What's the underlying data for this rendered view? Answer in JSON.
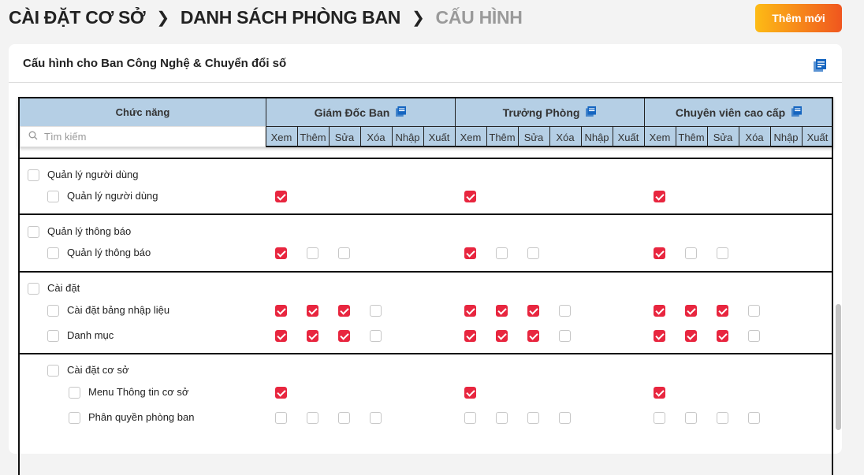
{
  "breadcrumb": [
    "CÀI ĐẶT CƠ SỞ",
    "DANH SÁCH PHÒNG BAN",
    "CẤU HÌNH"
  ],
  "add_button": "Thêm mới",
  "card_title": "Cấu hình cho Ban Công Nghệ & Chuyển đổi số",
  "colors": {
    "accent": "#e8263f",
    "header_bg": "#b5cfe5",
    "icon": "#1565c0",
    "button_from": "#fdbb15",
    "button_to": "#f0561f"
  },
  "table": {
    "function_header": "Chức năng",
    "search_placeholder": "Tìm kiếm",
    "roles": [
      "Giám Đốc Ban",
      "Trưởng Phòng",
      "Chuyên viên cao cấp"
    ],
    "actions": [
      "Xem",
      "Thêm",
      "Sửa",
      "Xóa",
      "Nhập",
      "Xuất"
    ],
    "groups": [
      {
        "rows": [
          {
            "label": "Quản lý người dùng",
            "level": 0
          },
          {
            "label": "Quản lý người dùng",
            "level": 1,
            "perms": [
              true
            ]
          }
        ]
      },
      {
        "rows": [
          {
            "label": "Quản lý thông báo",
            "level": 0
          },
          {
            "label": "Quản lý thông báo",
            "level": 1,
            "perms": [
              true,
              false,
              false
            ]
          }
        ]
      },
      {
        "rows": [
          {
            "label": "Cài đặt",
            "level": 0
          },
          {
            "label": "Cài đặt bảng nhập liệu",
            "level": 1,
            "perms": [
              true,
              true,
              true,
              false
            ]
          },
          {
            "label": "Danh mục",
            "level": 1,
            "perms": [
              true,
              true,
              true,
              false
            ]
          }
        ]
      },
      {
        "rows": [
          {
            "label": "Cài đặt cơ sở",
            "level": 1
          },
          {
            "label": "Menu Thông tin cơ sở",
            "level": 2,
            "perms": [
              true
            ]
          },
          {
            "label": "Phân quyền phòng ban",
            "level": 2,
            "perms": [
              false,
              false,
              false,
              false
            ]
          }
        ]
      }
    ]
  }
}
